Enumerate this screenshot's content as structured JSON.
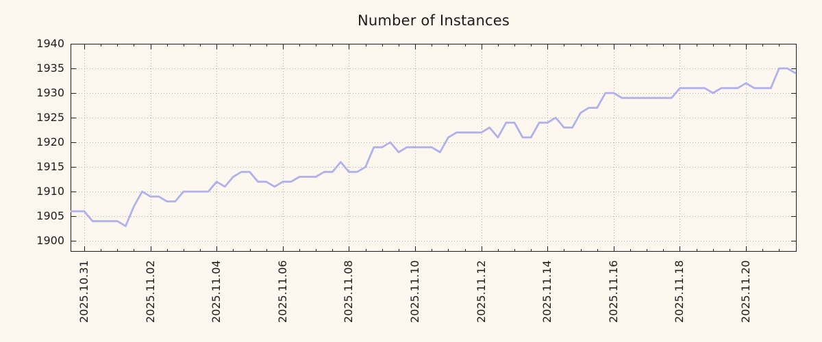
{
  "title": "Number of Instances",
  "colors": {
    "background": "#FDF7EF",
    "line": "#B1B0EE",
    "grid": "#A5A5A5",
    "axis": "#1c1c1c",
    "text": "#1c1c1c"
  },
  "chart_data": {
    "type": "line",
    "title": "Number of Instances",
    "xlabel": "",
    "ylabel": "",
    "grid": "dotted",
    "legend": "none",
    "y_ticks": [
      1900,
      1905,
      1910,
      1915,
      1920,
      1925,
      1930,
      1935,
      1940
    ],
    "ylim": [
      1897.8,
      1940
    ],
    "x_ticks": [
      {
        "day": 0,
        "label": "2025.10.31"
      },
      {
        "day": 2,
        "label": "2025.11.02"
      },
      {
        "day": 4,
        "label": "2025.11.04"
      },
      {
        "day": 6,
        "label": "2025.11.06"
      },
      {
        "day": 8,
        "label": "2025.11.08"
      },
      {
        "day": 10,
        "label": "2025.11.10"
      },
      {
        "day": 12,
        "label": "2025.11.12"
      },
      {
        "day": 14,
        "label": "2025.11.14"
      },
      {
        "day": 16,
        "label": "2025.11.16"
      },
      {
        "day": 18,
        "label": "2025.11.18"
      },
      {
        "day": 20,
        "label": "2025.11.20"
      }
    ],
    "xlim_days": [
      -0.414,
      21.53
    ],
    "minor_x_step_days": 0.5,
    "series": [
      {
        "name": "instances",
        "start_day": -0.5,
        "step_day": 0.25,
        "values": [
          1906,
          1906,
          1906,
          1904,
          1904,
          1904,
          1904,
          1903,
          1907,
          1910,
          1909,
          1909,
          1908,
          1908,
          1910,
          1910,
          1910,
          1910,
          1912,
          1911,
          1913,
          1914,
          1914,
          1912,
          1912,
          1911,
          1912,
          1912,
          1913,
          1913,
          1913,
          1914,
          1914,
          1916,
          1914,
          1914,
          1915,
          1919,
          1919,
          1920,
          1918,
          1919,
          1919,
          1919,
          1919,
          1918,
          1921,
          1922,
          1922,
          1922,
          1922,
          1923,
          1921,
          1924,
          1924,
          1921,
          1921,
          1924,
          1924,
          1925,
          1923,
          1923,
          1926,
          1927,
          1927,
          1930,
          1930,
          1929,
          1929,
          1929,
          1929,
          1929,
          1929,
          1929,
          1931,
          1931,
          1931,
          1931,
          1930,
          1931,
          1931,
          1931,
          1932,
          1931,
          1931,
          1931,
          1935,
          1935,
          1934
        ]
      }
    ]
  }
}
